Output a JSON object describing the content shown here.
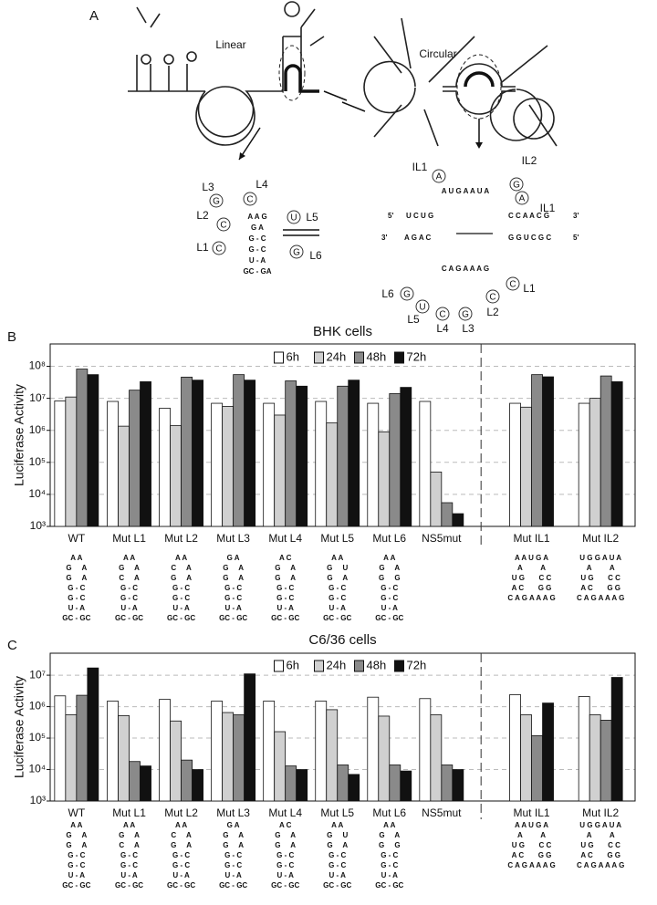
{
  "panel_labels": [
    "A",
    "B",
    "C"
  ],
  "panel_a": {
    "linear": "Linear",
    "circular": "Circular",
    "linear_loop": [
      {
        "label": "L3",
        "base": "G"
      },
      {
        "label": "L4",
        "base": "C"
      },
      {
        "label": "L2",
        "base": "C"
      },
      {
        "label": "L5",
        "base": "U"
      },
      {
        "label": "L1",
        "base": "C"
      },
      {
        "label": "L6",
        "base": "G"
      }
    ],
    "linear_stem": [
      "A A G",
      "G   A",
      "G - C",
      "G - C",
      "U - A",
      "GC - GA"
    ],
    "circular_loop_top": [
      {
        "label": "IL1",
        "base": "A"
      },
      {
        "label": "IL2",
        "base": "G"
      },
      {
        "label": "IL1",
        "base": "A"
      }
    ],
    "circular_loop_bottom": [
      {
        "label": "L6",
        "base": "G"
      },
      {
        "label": "L5",
        "base": "U"
      },
      {
        "label": "L4",
        "base": "C"
      },
      {
        "label": "L3",
        "base": "G"
      },
      {
        "label": "L2",
        "base": "C"
      },
      {
        "label": "L1",
        "base": "C"
      }
    ],
    "circular_strands": [
      "5'",
      "U C U G",
      "C C A A C G",
      "3'",
      "3'",
      "A G A C",
      "G G U C G C",
      "5'"
    ],
    "circular_ring": [
      "A U G A A U A",
      "C A G A A A G"
    ]
  },
  "chart_data": [
    {
      "type": "bar",
      "title": "BHK cells",
      "y_label": "Luciferase Activity",
      "log_scale": true,
      "grid": true,
      "categories": [
        "WT",
        "Mut L1",
        "Mut L2",
        "Mut L3",
        "Mut L4",
        "Mut L5",
        "Mut L6",
        "NS5mut",
        "Mut IL1",
        "Mut IL2"
      ],
      "series": [
        {
          "name": "6h",
          "color": "#ffffff",
          "values": [
            8300000,
            8000000,
            4900000,
            7000000,
            7000000,
            8000000,
            7000000,
            8000000,
            7000000,
            7000000
          ]
        },
        {
          "name": "24h",
          "color": "#d0d0d0",
          "values": [
            11000000,
            1350000,
            1400000,
            5600000,
            3000000,
            1700000,
            900000,
            50000,
            5300000,
            10000000
          ]
        },
        {
          "name": "48h",
          "color": "#8a8a8a",
          "values": [
            82000000,
            18000000,
            46000000,
            55000000,
            35000000,
            24000000,
            14000000,
            5500,
            55000000,
            50000000
          ]
        },
        {
          "name": "72h",
          "color": "#111111",
          "values": [
            55000000,
            33000000,
            37000000,
            37000000,
            24000000,
            37000000,
            22000000,
            2500,
            47000000,
            33000000
          ]
        }
      ],
      "ylim": [
        1000,
        500000000
      ],
      "yticks": [
        {
          "value": 1000,
          "label": "10³"
        },
        {
          "value": 10000,
          "label": "10⁴"
        },
        {
          "value": 100000,
          "label": "10⁵"
        },
        {
          "value": 1000000,
          "label": "10⁶"
        },
        {
          "value": 10000000,
          "label": "10⁷"
        },
        {
          "value": 100000000,
          "label": "10⁸"
        }
      ],
      "hairpins": [
        [
          "A A",
          "G     A",
          "G     A",
          "G - C",
          "G - C",
          "U - A",
          "GC - GC"
        ],
        [
          "A A",
          "G     A",
          "C     A",
          "G - C",
          "G - C",
          "U - A",
          "GC - GC"
        ],
        [
          "A A",
          "C     A",
          "G     A",
          "G - C",
          "G - C",
          "U - A",
          "GC - GC"
        ],
        [
          "G A",
          "G     A",
          "G     A",
          "G - C",
          "G - C",
          "U - A",
          "GC - GC"
        ],
        [
          "A C",
          "G     A",
          "G     A",
          "G - C",
          "G - C",
          "U - A",
          "GC - GC"
        ],
        [
          "A A",
          "G     U",
          "G     A",
          "G - C",
          "G - C",
          "U - A",
          "GC - GC"
        ],
        [
          "A A",
          "G     A",
          "G     G",
          "G - C",
          "G - C",
          "U - A",
          "GC - GC"
        ],
        [],
        [
          "A A U G A",
          "A         A",
          "U G       C C",
          "A C       G G",
          "C A G A A A G"
        ],
        [
          "U G G A U A",
          "A         A",
          "U G       C C",
          "A C       G G",
          "C A G A A A G"
        ]
      ]
    },
    {
      "type": "bar",
      "title": "C6/36 cells",
      "y_label": "Luciferase Activity",
      "log_scale": true,
      "grid": true,
      "categories": [
        "WT",
        "Mut L1",
        "Mut L2",
        "Mut L3",
        "Mut L4",
        "Mut L5",
        "Mut L6",
        "NS5mut",
        "Mut IL1",
        "Mut IL2"
      ],
      "series": [
        {
          "name": "6h",
          "color": "#ffffff",
          "values": [
            2200000,
            1500000,
            1700000,
            1500000,
            1500000,
            1500000,
            2000000,
            1800000,
            2400000,
            2100000
          ]
        },
        {
          "name": "24h",
          "color": "#d0d0d0",
          "values": [
            550000,
            520000,
            350000,
            650000,
            160000,
            800000,
            500000,
            550000,
            550000,
            550000
          ]
        },
        {
          "name": "48h",
          "color": "#8a8a8a",
          "values": [
            2300000,
            18000,
            20000,
            550000,
            13000,
            14000,
            14000,
            14000,
            120000,
            370000
          ]
        },
        {
          "name": "72h",
          "color": "#111111",
          "values": [
            17000000,
            13000,
            10000,
            11000000,
            10000,
            7000,
            9000,
            10000,
            1300000,
            8500000
          ]
        }
      ],
      "ylim": [
        1000,
        50000000
      ],
      "yticks": [
        {
          "value": 1000,
          "label": "10³"
        },
        {
          "value": 10000,
          "label": "10⁴"
        },
        {
          "value": 100000,
          "label": "10⁵"
        },
        {
          "value": 1000000,
          "label": "10⁶"
        },
        {
          "value": 10000000,
          "label": "10⁷"
        }
      ],
      "hairpins": [
        [
          "A A",
          "G     A",
          "G     A",
          "G - C",
          "G - C",
          "U - A",
          "GC - GC"
        ],
        [
          "A A",
          "G     A",
          "C     A",
          "G - C",
          "G - C",
          "U - A",
          "GC - GC"
        ],
        [
          "A A",
          "C     A",
          "G     A",
          "G - C",
          "G - C",
          "U - A",
          "GC - GC"
        ],
        [
          "G A",
          "G     A",
          "G     A",
          "G - C",
          "G - C",
          "U - A",
          "GC - GC"
        ],
        [
          "A C",
          "G     A",
          "G     A",
          "G - C",
          "G - C",
          "U - A",
          "GC - GC"
        ],
        [
          "A A",
          "G     U",
          "G     A",
          "G - C",
          "G - C",
          "U - A",
          "GC - GC"
        ],
        [
          "A A",
          "G     A",
          "G     G",
          "G - C",
          "G - C",
          "U - A",
          "GC - GC"
        ],
        [],
        [
          "A A U G A",
          "A         A",
          "U G       C C",
          "A C       G G",
          "C A G A A A G"
        ],
        [
          "U G G A U A",
          "A         A",
          "U G       C C",
          "A C       G G",
          "C A G A A A G"
        ]
      ]
    }
  ]
}
